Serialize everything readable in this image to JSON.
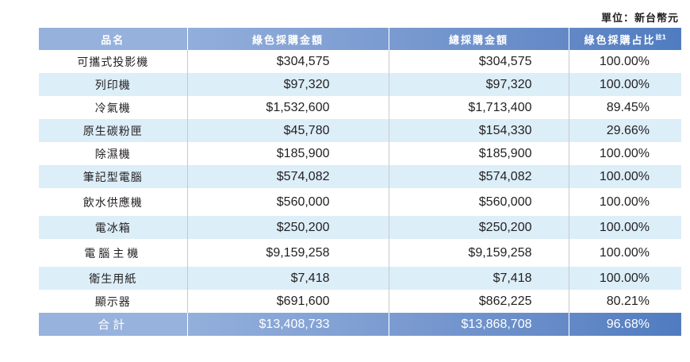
{
  "unit_label": "單位：新台幣元",
  "headers": {
    "item": "品名",
    "green": "綠色採購金額",
    "total": "總採購金額",
    "ratio": "綠色採購占比",
    "ratio_note": "註1"
  },
  "rows": [
    {
      "item": "可攜式投影機",
      "green": "$304,575",
      "total": "$304,575",
      "ratio": "100.00%"
    },
    {
      "item": "列印機",
      "green": "$97,320",
      "total": "$97,320",
      "ratio": "100.00%"
    },
    {
      "item": "冷氣機",
      "green": "$1,532,600",
      "total": "$1,713,400",
      "ratio": "89.45%"
    },
    {
      "item": "原生碳粉匣",
      "green": "$45,780",
      "total": "$154,330",
      "ratio": "29.66%"
    },
    {
      "item": "除濕機",
      "green": "$185,900",
      "total": "$185,900",
      "ratio": "100.00%"
    },
    {
      "item": "筆記型電腦",
      "green": "$574,082",
      "total": "$574,082",
      "ratio": "100.00%"
    },
    {
      "item": "飲水供應機",
      "green": "$560,000",
      "total": "$560,000",
      "ratio": "100.00%"
    },
    {
      "item": "電冰箱",
      "green": "$250,200",
      "total": "$250,200",
      "ratio": "100.00%"
    },
    {
      "item": "電腦主機",
      "green": "$9,159,258",
      "total": "$9,159,258",
      "ratio": "100.00%"
    },
    {
      "item": "衛生用紙",
      "green": "$7,418",
      "total": "$7,418",
      "ratio": "100.00%"
    },
    {
      "item": "顯示器",
      "green": "$691,600",
      "total": "$862,225",
      "ratio": "80.21%"
    }
  ],
  "total_row": {
    "item": "合計",
    "green": "$13,408,733",
    "total": "$13,868,708",
    "ratio": "96.68%"
  }
}
